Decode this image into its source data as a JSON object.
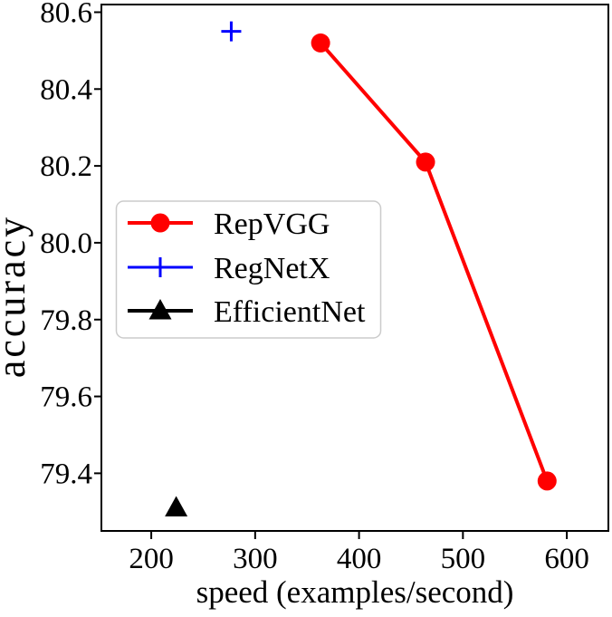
{
  "chart_data": {
    "type": "line",
    "title": "",
    "xlabel": "speed (examples/second)",
    "ylabel": "accuracy",
    "xlim": [
      152,
      640
    ],
    "ylim": [
      79.25,
      80.62
    ],
    "xticks": [
      200,
      300,
      400,
      500,
      600
    ],
    "xtick_labels": [
      "200",
      "300",
      "400",
      "500",
      "600"
    ],
    "yticks": [
      79.4,
      79.6,
      79.8,
      80.0,
      80.2,
      80.4,
      80.6
    ],
    "ytick_labels": [
      "79.4",
      "79.6",
      "79.8",
      "80.0",
      "80.2",
      "80.4",
      "80.6"
    ],
    "grid": false,
    "legend_position": "center-left-inside",
    "series": [
      {
        "name": "RepVGG",
        "color": "#ff0000",
        "marker": "circle",
        "show_line": true,
        "points": [
          {
            "x": 363,
            "y": 80.52
          },
          {
            "x": 464,
            "y": 80.21
          },
          {
            "x": 581,
            "y": 79.38
          }
        ]
      },
      {
        "name": "RegNetX",
        "color": "#0000ff",
        "marker": "plus",
        "show_line": false,
        "points": [
          {
            "x": 277,
            "y": 80.55
          }
        ]
      },
      {
        "name": "EfficientNet",
        "color": "#000000",
        "marker": "triangle",
        "show_line": false,
        "points": [
          {
            "x": 224,
            "y": 79.31
          }
        ]
      }
    ]
  },
  "colors": {
    "background": "#ffffff",
    "axis": "#000000",
    "text": "#000000",
    "legend_border": "#cbcbcb",
    "legend_background": "#ffffff"
  }
}
